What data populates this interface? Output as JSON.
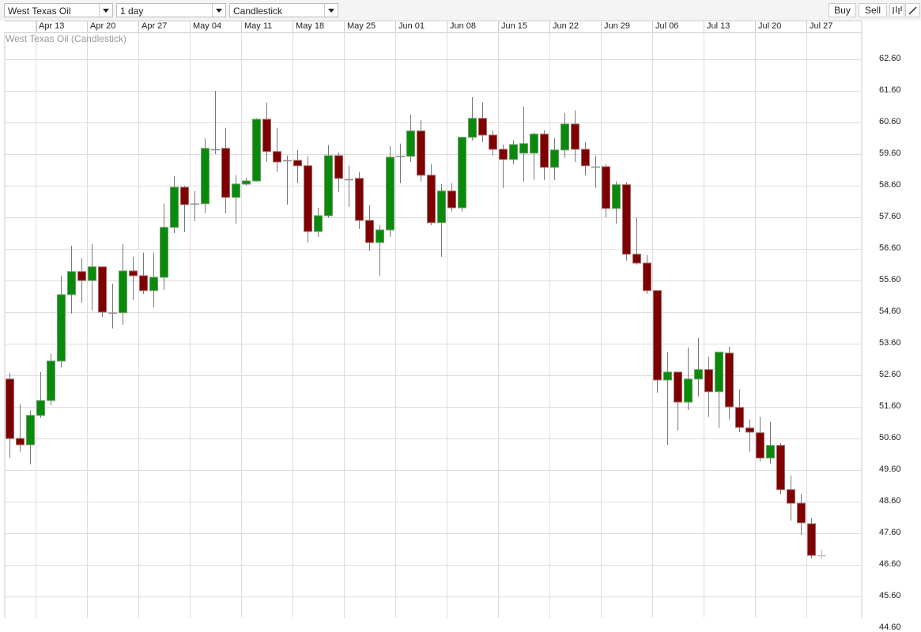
{
  "toolbar": {
    "instrument": "West Texas Oil",
    "interval": "1 day",
    "chart_style": "Candlestick",
    "buy_label": "Buy",
    "sell_label": "Sell",
    "icons": [
      "candles-icon",
      "draw-line-icon"
    ]
  },
  "colors": {
    "up": "#0a8a0a",
    "down": "#7f0000",
    "wick": "#777777",
    "grid": "#dddddd"
  },
  "chart_data": {
    "type": "candlestick",
    "title": "West Texas Oil (Candlestick)",
    "x_tick_labels": [
      "Apr 13",
      "Apr 20",
      "Apr 27",
      "May 04",
      "May 11",
      "May 18",
      "May 25",
      "Jun 01",
      "Jun 08",
      "Jun 15",
      "Jun 22",
      "Jun 29",
      "Jul 06",
      "Jul 13",
      "Jul 20",
      "Jul 27"
    ],
    "y_tick_labels": [
      "62.60",
      "61.60",
      "60.60",
      "59.60",
      "58.60",
      "57.60",
      "56.60",
      "55.60",
      "54.60",
      "53.60",
      "52.60",
      "51.60",
      "50.60",
      "49.60",
      "48.60",
      "47.60",
      "46.60",
      "45.60",
      "44.60"
    ],
    "ylim": [
      44.6,
      63.6
    ],
    "y_axis_position": "right",
    "grid": true,
    "fields": [
      "date",
      "open",
      "high",
      "low",
      "close"
    ],
    "candles": [
      [
        "Apr 08",
        52.48,
        52.68,
        49.98,
        50.6
      ],
      [
        "Apr 09",
        50.6,
        51.68,
        50.18,
        50.4
      ],
      [
        "Apr 10",
        50.4,
        51.48,
        49.78,
        51.33
      ],
      [
        "Apr 13",
        51.33,
        52.7,
        51.25,
        51.8
      ],
      [
        "Apr 14",
        51.8,
        53.28,
        51.65,
        53.05
      ],
      [
        "Apr 15",
        53.05,
        55.75,
        52.85,
        55.15
      ],
      [
        "Apr 16",
        55.15,
        56.7,
        54.55,
        55.88
      ],
      [
        "Apr 17",
        55.88,
        56.3,
        54.9,
        55.6
      ],
      [
        "Apr 20",
        55.6,
        56.75,
        54.65,
        56.03
      ],
      [
        "Apr 21",
        56.03,
        56.03,
        54.45,
        54.6
      ],
      [
        "Apr 22",
        54.6,
        55.5,
        54.08,
        54.58
      ],
      [
        "Apr 23",
        54.58,
        56.75,
        54.2,
        55.9
      ],
      [
        "Apr 24",
        55.9,
        56.35,
        54.98,
        55.75
      ],
      [
        "Apr 27",
        55.75,
        56.48,
        55.18,
        55.28
      ],
      [
        "Apr 28",
        55.28,
        56.48,
        54.75,
        55.7
      ],
      [
        "Apr 29",
        55.7,
        58.03,
        55.3,
        57.28
      ],
      [
        "Apr 30",
        57.28,
        58.9,
        57.1,
        58.55
      ],
      [
        "May 01",
        58.55,
        58.6,
        57.13,
        58.0
      ],
      [
        "May 04",
        58.0,
        58.43,
        57.48,
        58.03
      ],
      [
        "May 05",
        58.03,
        60.1,
        57.73,
        59.78
      ],
      [
        "May 06",
        59.78,
        61.6,
        59.6,
        59.75
      ],
      [
        "May 07",
        59.78,
        60.43,
        57.73,
        58.23
      ],
      [
        "May 08",
        58.23,
        58.93,
        57.4,
        58.65
      ],
      [
        "May 11",
        58.65,
        58.85,
        58.6,
        58.75
      ],
      [
        "May 12",
        58.75,
        60.73,
        58.73,
        60.7
      ],
      [
        "May 13",
        60.7,
        61.23,
        59.35,
        59.68
      ],
      [
        "May 14",
        59.68,
        60.43,
        59.03,
        59.35
      ],
      [
        "May 15",
        59.35,
        59.55,
        58.0,
        59.4
      ],
      [
        "May 18",
        59.4,
        59.73,
        58.68,
        59.23
      ],
      [
        "May 19",
        59.23,
        59.53,
        56.8,
        57.15
      ],
      [
        "May 20",
        57.15,
        57.9,
        56.98,
        57.65
      ],
      [
        "May 21",
        57.65,
        59.88,
        57.58,
        59.55
      ],
      [
        "May 22",
        59.55,
        59.65,
        58.4,
        58.83
      ],
      [
        "May 25",
        58.83,
        59.23,
        57.93,
        58.8
      ],
      [
        "May 26",
        58.83,
        59.03,
        57.23,
        57.5
      ],
      [
        "May 27",
        57.5,
        57.98,
        56.53,
        56.8
      ],
      [
        "May 28",
        56.8,
        57.35,
        55.75,
        57.2
      ],
      [
        "May 29",
        57.2,
        59.85,
        56.98,
        59.5
      ],
      [
        "Jun 01",
        59.5,
        59.93,
        58.68,
        59.53
      ],
      [
        "Jun 02",
        59.53,
        60.85,
        59.35,
        60.33
      ],
      [
        "Jun 03",
        60.33,
        60.68,
        58.73,
        58.93
      ],
      [
        "Jun 04",
        58.93,
        59.28,
        57.35,
        57.43
      ],
      [
        "Jun 05",
        57.43,
        58.65,
        56.35,
        58.43
      ],
      [
        "Jun 08",
        58.43,
        58.68,
        57.78,
        57.9
      ],
      [
        "Jun 09",
        57.9,
        60.13,
        57.78,
        60.13
      ],
      [
        "Jun 10",
        60.13,
        61.4,
        60.03,
        60.73
      ],
      [
        "Jun 11",
        60.73,
        61.23,
        59.98,
        60.2
      ],
      [
        "Jun 12",
        60.2,
        60.35,
        59.55,
        59.75
      ],
      [
        "Jun 15",
        59.75,
        59.9,
        58.53,
        59.43
      ],
      [
        "Jun 16",
        59.43,
        60.03,
        59.28,
        59.9
      ],
      [
        "Jun 17",
        59.63,
        61.1,
        58.73,
        59.93
      ],
      [
        "Jun 18",
        59.63,
        60.28,
        58.78,
        60.23
      ],
      [
        "Jun 19",
        60.23,
        60.35,
        58.78,
        59.18
      ],
      [
        "Jun 22",
        59.18,
        60.1,
        58.78,
        59.73
      ],
      [
        "Jun 23",
        59.73,
        60.9,
        59.48,
        60.55
      ],
      [
        "Jun 24",
        60.55,
        60.98,
        59.35,
        59.75
      ],
      [
        "Jun 25",
        59.75,
        59.98,
        58.93,
        59.23
      ],
      [
        "Jun 26",
        59.23,
        59.55,
        58.53,
        59.2
      ],
      [
        "Jun 29",
        59.2,
        59.28,
        57.6,
        57.88
      ],
      [
        "Jun 30",
        57.88,
        58.73,
        57.4,
        58.63
      ],
      [
        "Jul 01",
        58.63,
        58.7,
        56.23,
        56.43
      ],
      [
        "Jul 02",
        56.43,
        57.58,
        56.1,
        56.15
      ],
      [
        "Jul 03",
        56.15,
        56.4,
        55.18,
        55.28
      ],
      [
        "Jul 06",
        55.28,
        55.28,
        52.05,
        52.45
      ],
      [
        "Jul 07",
        52.45,
        53.33,
        50.4,
        52.7
      ],
      [
        "Jul 08",
        52.7,
        52.7,
        50.85,
        51.75
      ],
      [
        "Jul 09",
        51.75,
        53.48,
        51.5,
        52.48
      ],
      [
        "Jul 10",
        52.48,
        53.78,
        51.93,
        52.78
      ],
      [
        "Jul 13",
        52.78,
        53.18,
        51.28,
        52.08
      ],
      [
        "Jul 14",
        52.08,
        53.33,
        50.93,
        53.33
      ],
      [
        "Jul 15",
        53.3,
        53.5,
        51.2,
        51.6
      ],
      [
        "Jul 16",
        51.58,
        52.15,
        50.8,
        50.95
      ],
      [
        "Jul 17",
        50.93,
        51.2,
        50.18,
        50.8
      ],
      [
        "Jul 20",
        50.78,
        51.28,
        49.88,
        49.98
      ],
      [
        "Jul 21",
        49.98,
        51.13,
        49.8,
        50.38
      ],
      [
        "Jul 22",
        50.38,
        50.45,
        48.83,
        48.98
      ],
      [
        "Jul 23",
        48.98,
        49.43,
        48.0,
        48.55
      ],
      [
        "Jul 24",
        48.55,
        48.85,
        47.55,
        47.93
      ],
      [
        "Jul 27",
        47.9,
        48.08,
        46.8,
        46.9
      ],
      [
        "Jul 28",
        46.9,
        47.08,
        46.8,
        46.9
      ]
    ]
  }
}
